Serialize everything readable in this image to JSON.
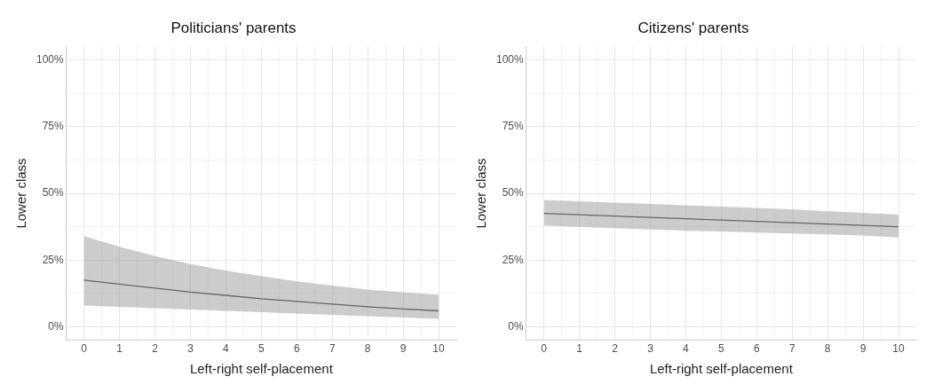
{
  "chart_data": [
    {
      "type": "line",
      "title": "Politicians' parents",
      "xlabel": "Left-right self-placement",
      "ylabel": "Lower class",
      "x": [
        0,
        1,
        2,
        3,
        4,
        5,
        6,
        7,
        8,
        9,
        10
      ],
      "series": [
        {
          "color": "#333333",
          "values": [
            17.5,
            16,
            14.5,
            13,
            11.8,
            10.5,
            9.5,
            8.5,
            7.5,
            6.7,
            6
          ],
          "lower": [
            8,
            7.5,
            7,
            6.5,
            6,
            5.5,
            5,
            4.5,
            4,
            3.5,
            3
          ],
          "upper": [
            34,
            30,
            26.5,
            23.5,
            21,
            19,
            17,
            15.5,
            14,
            13,
            12
          ]
        }
      ],
      "xlim": [
        -0.5,
        10.5
      ],
      "xticks": [
        0,
        {
          "value": 0.5,
          "label": null
        },
        1,
        {
          "value": 1.5,
          "label": null
        },
        2,
        {
          "value": 2.5,
          "label": null
        },
        3,
        {
          "value": 3.5,
          "label": null
        },
        4,
        {
          "value": 4.5,
          "label": null
        },
        5,
        {
          "value": 5.5,
          "label": null
        },
        6,
        {
          "value": 6.5,
          "label": null
        },
        7,
        {
          "value": 7.5,
          "label": null
        },
        8,
        {
          "value": 8.5,
          "label": null
        },
        9,
        {
          "value": 9.5,
          "label": null
        },
        10
      ],
      "ylim": [
        -5,
        105
      ],
      "yticks": [
        {
          "value": 0,
          "label": "0%"
        },
        {
          "value": 12.5,
          "label": null
        },
        {
          "value": 25,
          "label": "25%"
        },
        {
          "value": 37.5,
          "label": null
        },
        {
          "value": 50,
          "label": "50%"
        },
        {
          "value": 62.5,
          "label": null
        },
        {
          "value": 75,
          "label": "75%"
        },
        {
          "value": 87.5,
          "label": null
        },
        {
          "value": 100,
          "label": "100%"
        }
      ],
      "grid": true,
      "legend": false,
      "marker": "none",
      "line_style": "solid"
    },
    {
      "type": "line",
      "title": "Citizens' parents",
      "xlabel": "Left-right self-placement",
      "ylabel": "Lower class",
      "x": [
        0,
        1,
        2,
        3,
        4,
        5,
        6,
        7,
        8,
        9,
        10
      ],
      "series": [
        {
          "color": "#333333",
          "values": [
            42.5,
            42,
            41.5,
            41,
            40.5,
            40,
            39.5,
            39,
            38.5,
            38,
            37.5
          ],
          "lower": [
            38,
            37.5,
            37,
            36.5,
            36,
            35.7,
            35.3,
            35,
            34.6,
            34.2,
            33.5
          ],
          "upper": [
            47.5,
            47,
            46.5,
            46,
            45.5,
            45,
            44.5,
            44,
            43.3,
            42.7,
            42
          ]
        }
      ],
      "xlim": [
        -0.5,
        10.5
      ],
      "xticks": [
        0,
        {
          "value": 0.5,
          "label": null
        },
        1,
        {
          "value": 1.5,
          "label": null
        },
        2,
        {
          "value": 2.5,
          "label": null
        },
        3,
        {
          "value": 3.5,
          "label": null
        },
        4,
        {
          "value": 4.5,
          "label": null
        },
        5,
        {
          "value": 5.5,
          "label": null
        },
        6,
        {
          "value": 6.5,
          "label": null
        },
        7,
        {
          "value": 7.5,
          "label": null
        },
        8,
        {
          "value": 8.5,
          "label": null
        },
        9,
        {
          "value": 9.5,
          "label": null
        },
        10
      ],
      "ylim": [
        -5,
        105
      ],
      "yticks": [
        {
          "value": 0,
          "label": "0%"
        },
        {
          "value": 12.5,
          "label": null
        },
        {
          "value": 25,
          "label": "25%"
        },
        {
          "value": 37.5,
          "label": null
        },
        {
          "value": 50,
          "label": "50%"
        },
        {
          "value": 62.5,
          "label": null
        },
        {
          "value": 75,
          "label": "75%"
        },
        {
          "value": 87.5,
          "label": null
        },
        {
          "value": 100,
          "label": "100%"
        }
      ],
      "grid": true,
      "legend": false,
      "marker": "none",
      "line_style": "solid"
    }
  ]
}
